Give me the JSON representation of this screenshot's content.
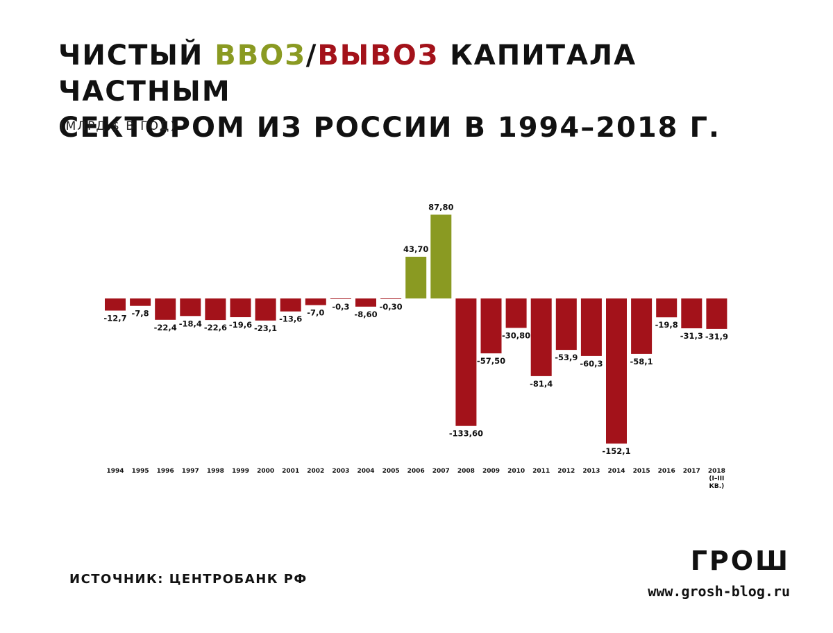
{
  "header": {
    "title_part1": "ЧИСТЫЙ ",
    "title_inflow": "ВВОЗ",
    "title_slash": "/",
    "title_outflow": "ВЫВОЗ",
    "title_line1_rest": " КАПИТАЛА ЧАСТНЫМ",
    "title_line2": "СЕКТОРОМ ИЗ РОССИИ В 1994–2018 Г.",
    "subtitle": "(МЛРД $ В ГОД)"
  },
  "colors": {
    "inflow": "#8a9a22",
    "outflow": "#a3121a",
    "text": "#111111"
  },
  "footer": {
    "source": "ИСТОЧНИК: ЦЕНТРОБАНК РФ",
    "logo": "ГРОШ",
    "website": "www.grosh-blog.ru"
  },
  "chart_data": {
    "type": "bar",
    "categories": [
      "1994",
      "1995",
      "1996",
      "1997",
      "1998",
      "1999",
      "2000",
      "2001",
      "2002",
      "2003",
      "2004",
      "2005",
      "2006",
      "2007",
      "2008",
      "2009",
      "2010",
      "2011",
      "2012",
      "2013",
      "2014",
      "2015",
      "2016",
      "2017",
      "2018 (I–III КВ.)"
    ],
    "category_lines": [
      [
        "1994"
      ],
      [
        "1995"
      ],
      [
        "1996"
      ],
      [
        "1997"
      ],
      [
        "1998"
      ],
      [
        "1999"
      ],
      [
        "2000"
      ],
      [
        "2001"
      ],
      [
        "2002"
      ],
      [
        "2003"
      ],
      [
        "2004"
      ],
      [
        "2005"
      ],
      [
        "2006"
      ],
      [
        "2007"
      ],
      [
        "2008"
      ],
      [
        "2009"
      ],
      [
        "2010"
      ],
      [
        "2011"
      ],
      [
        "2012"
      ],
      [
        "2013"
      ],
      [
        "2014"
      ],
      [
        "2015"
      ],
      [
        "2016"
      ],
      [
        "2017"
      ],
      [
        "2018",
        "(I–III",
        "КВ.)"
      ]
    ],
    "values": [
      -12.7,
      -7.8,
      -22.4,
      -18.4,
      -22.6,
      -19.6,
      -23.1,
      -13.6,
      -7.0,
      -0.3,
      -8.6,
      -0.3,
      43.7,
      87.8,
      -133.6,
      -57.5,
      -30.8,
      -81.4,
      -53.9,
      -60.3,
      -152.1,
      -58.1,
      -19.8,
      -31.3,
      -31.9
    ],
    "value_labels": [
      "-12,7",
      "-7,8",
      "-22,4",
      "-18,4",
      "-22,6",
      "-19,6",
      "-23,1",
      "-13,6",
      "-7,0",
      "-0,3",
      "-8,60",
      "-0,30",
      "43,70",
      "87,80",
      "-133,60",
      "-57,50",
      "-30,80",
      "-81,4",
      "-53,9",
      "-60,3",
      "-152,1",
      "-58,1",
      "-19,8",
      "-31,3",
      "-31,9"
    ],
    "title": "ЧИСТЫЙ ВВОЗ/ВЫВОЗ КАПИТАЛА ЧАСТНЫМ СЕКТОРОМ ИЗ РОССИИ В 1994–2018 Г.",
    "subtitle": "(МЛРД $ В ГОД)",
    "xlabel": "",
    "ylabel": "",
    "ylim": [
      -152.1,
      87.8
    ],
    "grid": false,
    "legend": "none"
  }
}
